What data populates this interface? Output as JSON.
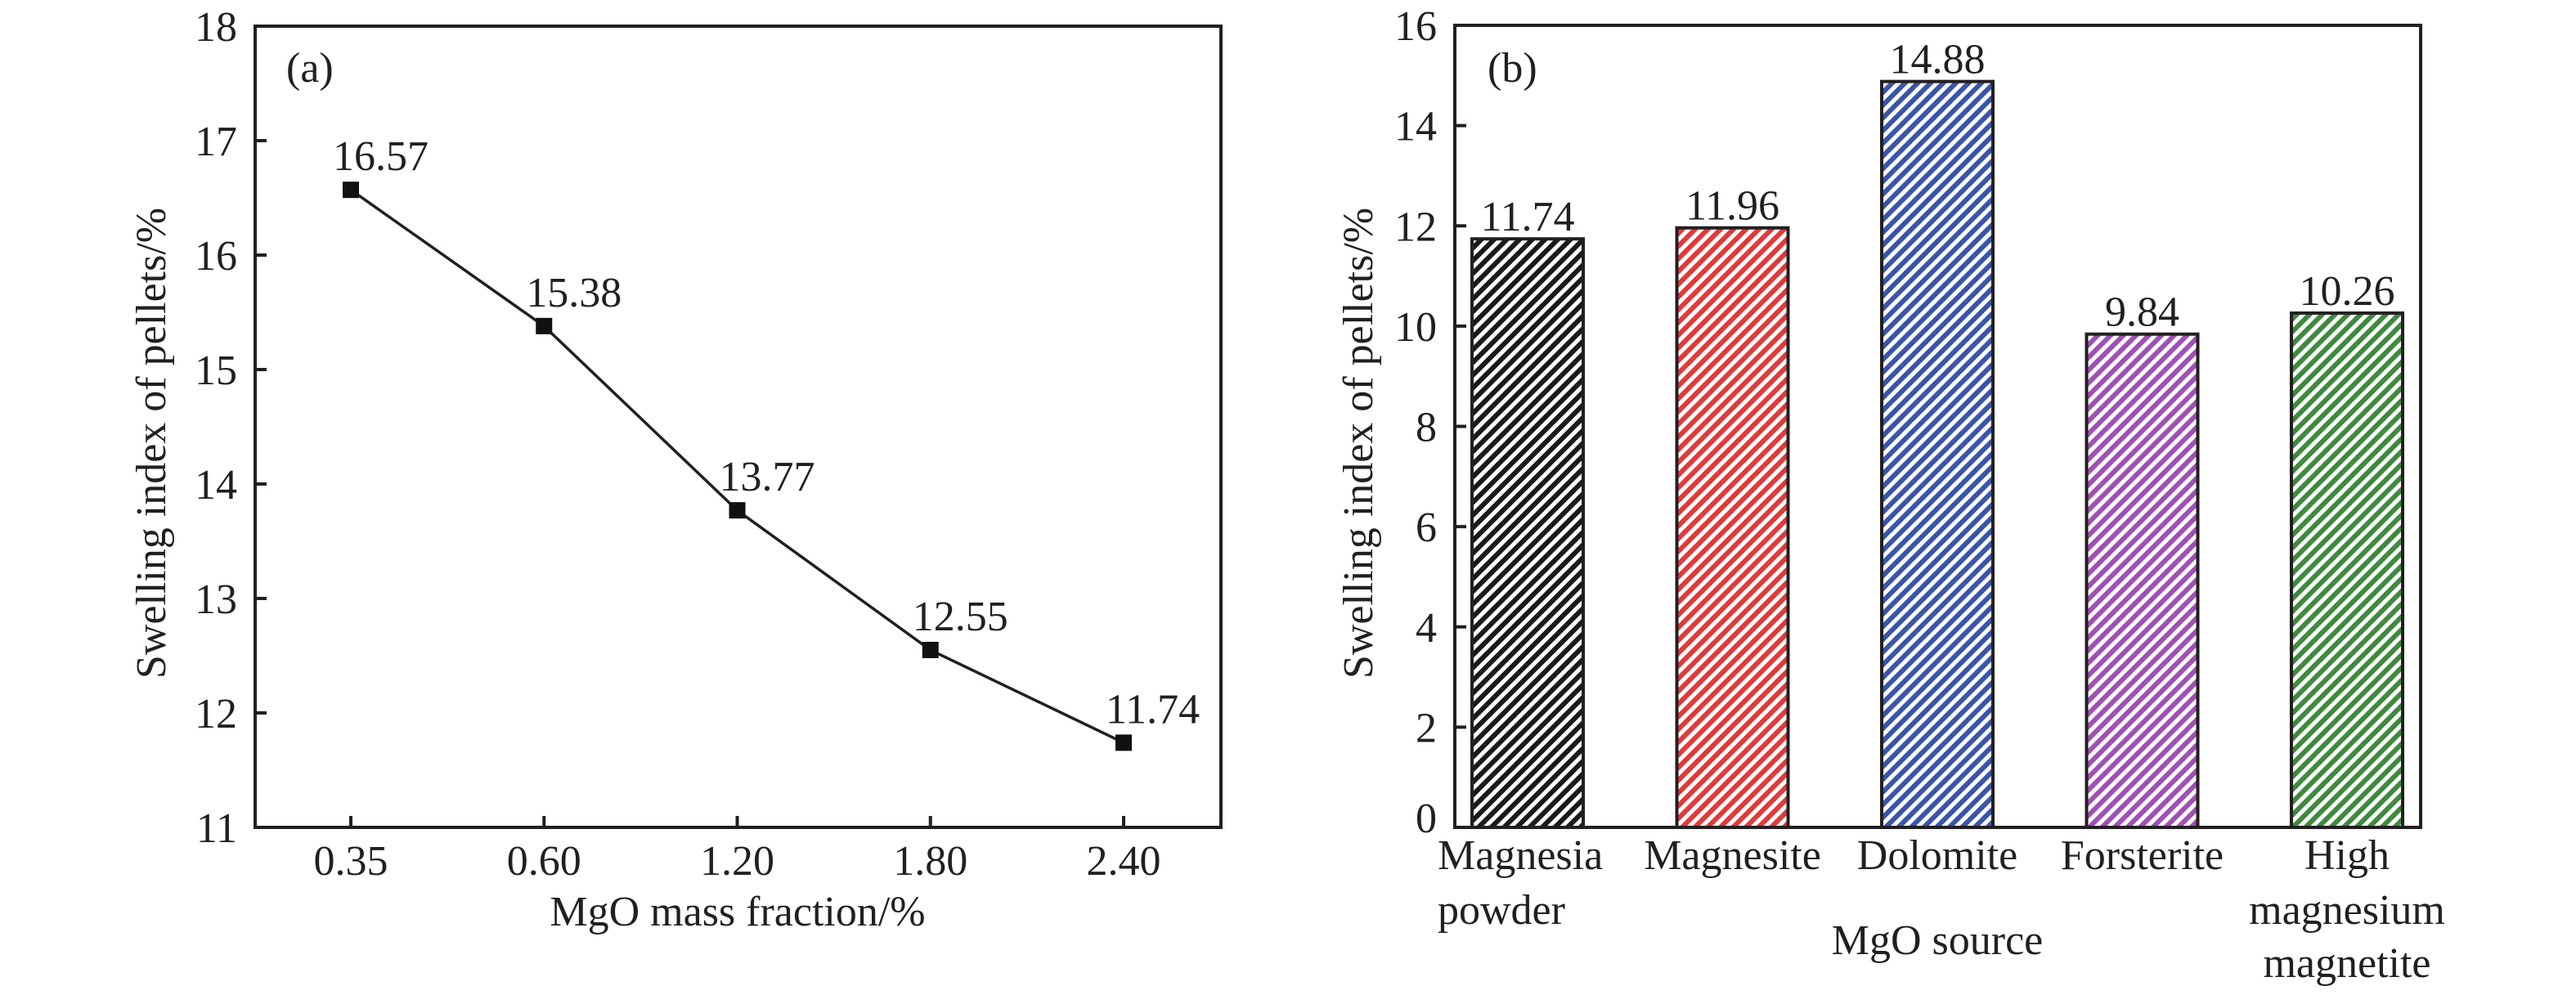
{
  "chart_data": [
    {
      "type": "line",
      "panel_label": "(a)",
      "title": "",
      "xlabel": "MgO mass fraction/%",
      "ylabel": "Swelling index of pellets/%",
      "categories": [
        "0.35",
        "0.60",
        "1.20",
        "1.80",
        "2.40"
      ],
      "series": [
        {
          "name": "Swelling index",
          "values": [
            16.57,
            15.38,
            13.77,
            12.55,
            11.74
          ],
          "labels": [
            "16.57",
            "15.38",
            "13.77",
            "12.55",
            "11.74"
          ],
          "marker": "square",
          "color": "#111111"
        }
      ],
      "ylim": [
        11,
        18
      ],
      "yticks": [
        "11",
        "12",
        "13",
        "14",
        "15",
        "16",
        "17",
        "18"
      ],
      "grid": false,
      "legend": "none"
    },
    {
      "type": "bar",
      "panel_label": "(b)",
      "title": "",
      "xlabel": "MgO source",
      "ylabel": "Swelling index of pellets/%",
      "categories": [
        [
          "Magnesia",
          "powder"
        ],
        [
          "Magnesite"
        ],
        [
          "Dolomite"
        ],
        [
          "Forsterite"
        ],
        [
          "High",
          "magnesium",
          "magnetite"
        ]
      ],
      "values": [
        11.74,
        11.96,
        14.88,
        9.84,
        10.26
      ],
      "labels": [
        "11.74",
        "11.96",
        "14.88",
        "9.84",
        "10.26"
      ],
      "colors": [
        "#1a1a1a",
        "#e03a3a",
        "#3a55a8",
        "#a050b4",
        "#3e8a3e"
      ],
      "fill_style": "diagonal-hatch",
      "ylim": [
        0,
        16
      ],
      "yticks": [
        "0",
        "2",
        "4",
        "6",
        "8",
        "10",
        "12",
        "14",
        "16"
      ],
      "grid": false,
      "legend": "none"
    }
  ]
}
